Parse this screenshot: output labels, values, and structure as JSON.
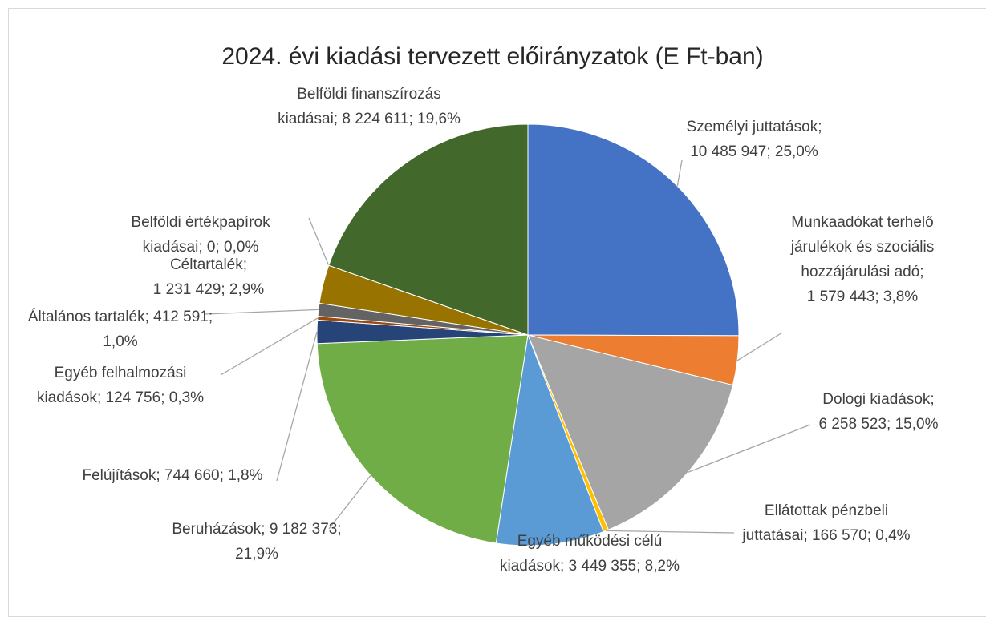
{
  "chart_data": {
    "type": "pie",
    "title": "2024. évi kiadási tervezett előirányzatok (E Ft-ban)",
    "categories": [
      "Személyi juttatások",
      "Munkaadókat terhelő járulékok és szociális hozzájárulási adó",
      "Dologi kiadások",
      "Ellátottak pénzbeli juttatásai",
      "Egyéb működési célú kiadások",
      "Beruházások",
      "Felújítások",
      "Egyéb felhalmozási kiadások",
      "Általános tartalék",
      "Céltartalék",
      "Belföldi értékpapírok kiadásai",
      "Belföldi finanszírozás kiadásai"
    ],
    "values": [
      10485947,
      1579443,
      6258523,
      166570,
      3449355,
      9182373,
      744660,
      124756,
      412591,
      1231429,
      0,
      8224611
    ],
    "value_labels": [
      "10 485 947",
      "1 579 443",
      "6 258 523",
      "166 570",
      "3 449 355",
      "9 182 373",
      "744 660",
      "124 756",
      "412 591",
      "1 231 429",
      "0",
      "8 224 611"
    ],
    "percents": [
      25.0,
      3.8,
      15.0,
      0.4,
      8.2,
      21.9,
      1.8,
      0.3,
      1.0,
      2.9,
      0.0,
      19.6
    ],
    "percent_labels": [
      "25,0%",
      "3,8%",
      "15,0%",
      "0,4%",
      "8,2%",
      "21,9%",
      "1,8%",
      "0,3%",
      "1,0%",
      "2,9%",
      "0,0%",
      "19,6%"
    ],
    "label_separator": "; ",
    "colors": [
      "#4472c4",
      "#ed7d31",
      "#a5a5a5",
      "#ffc000",
      "#5b9bd5",
      "#70ad47",
      "#264478",
      "#9e480e",
      "#636363",
      "#997300",
      "#4a77c8",
      "#43682b"
    ]
  }
}
